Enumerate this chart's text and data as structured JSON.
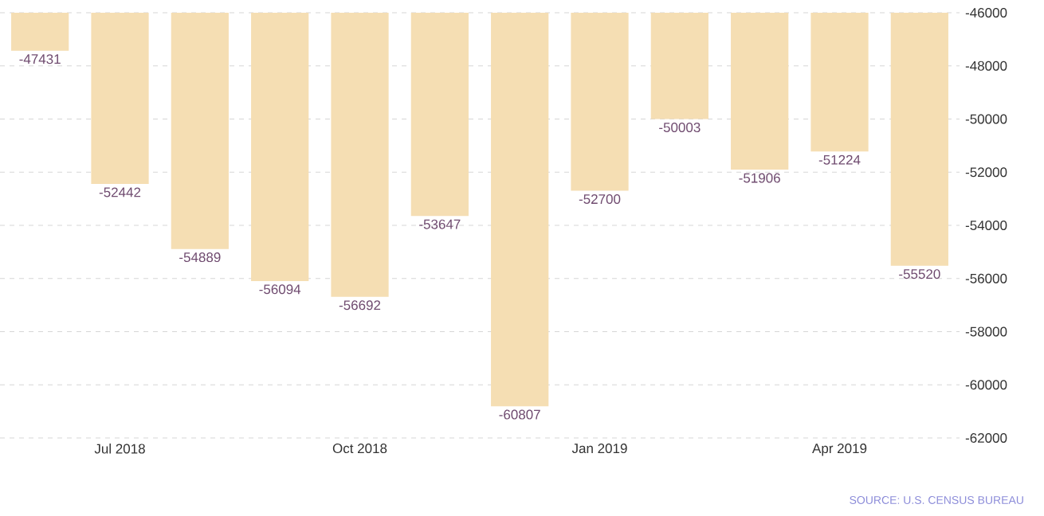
{
  "chart_data": {
    "type": "bar",
    "categories": [
      null,
      "Jul 2018",
      null,
      null,
      "Oct 2018",
      null,
      null,
      "Jan 2019",
      null,
      null,
      "Apr 2019",
      null
    ],
    "values": [
      -47431,
      -52442,
      -54889,
      -56094,
      -56692,
      -53647,
      -60807,
      -52700,
      -50003,
      -51906,
      -51224,
      -55520
    ],
    "color": "#f5deb3",
    "ylim": [
      -62000,
      -46000
    ],
    "yticks": [
      -62000,
      -60000,
      -58000,
      -56000,
      -54000,
      -52000,
      -50000,
      -48000,
      -46000
    ],
    "grid": "y",
    "data_labels": true,
    "annotations": [
      "SOURCE: U.S. CENSUS BUREAU"
    ]
  }
}
